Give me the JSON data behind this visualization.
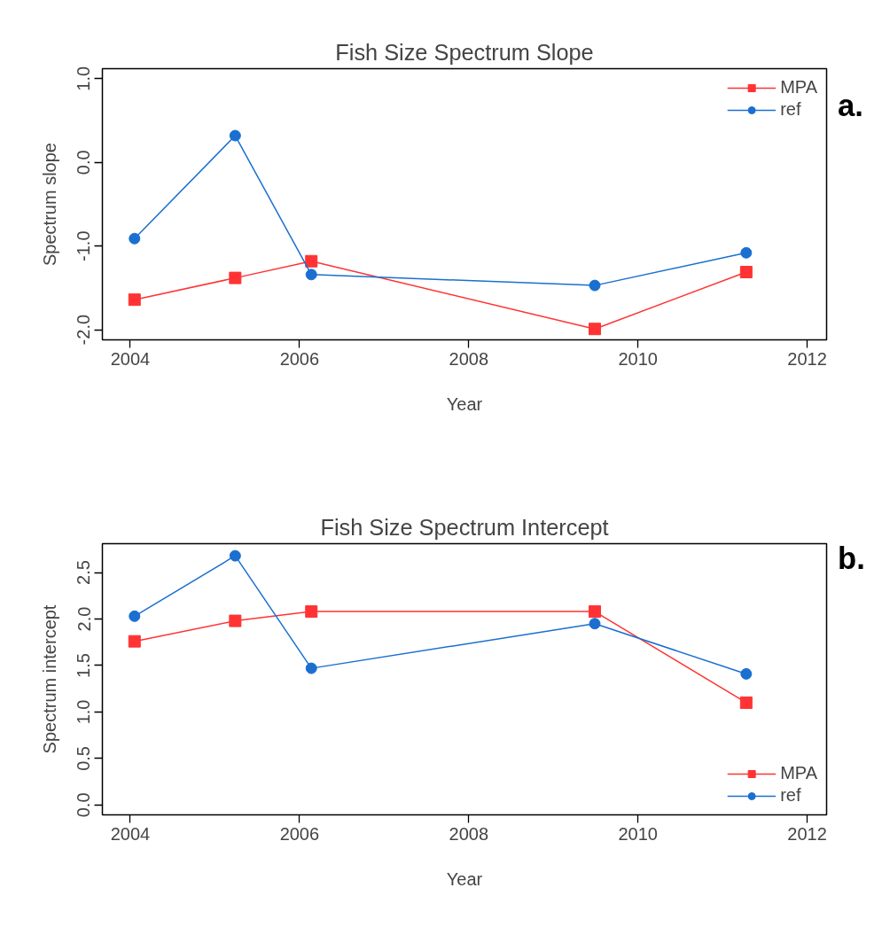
{
  "chart_data": [
    {
      "type": "line",
      "title": "Fish Size Spectrum Slope",
      "xlabel": "Year",
      "ylabel": "Spectrum slope",
      "annotations": [
        "a."
      ],
      "x": [
        2004.05,
        2005.24,
        2006.14,
        2009.49,
        2011.28
      ],
      "series": [
        {
          "name": "MPA",
          "color": "#ff3333",
          "marker": "square",
          "values": [
            -1.64,
            -1.38,
            -1.18,
            -1.99,
            -1.31
          ]
        },
        {
          "name": "ref",
          "color": "#1a6fd0",
          "marker": "circle",
          "values": [
            -0.91,
            0.32,
            -1.34,
            -1.47,
            -1.08
          ]
        }
      ],
      "xlim": [
        2003.67,
        2012.23
      ],
      "xticks": [
        2004,
        2006,
        2008,
        2010,
        2012
      ],
      "ylim": [
        -2.12,
        1.12
      ],
      "yticks": [
        {
          "value": -2,
          "label": "-2.0"
        },
        {
          "value": -1,
          "label": "-1.0"
        },
        {
          "value": 0,
          "label": "0.0"
        },
        {
          "value": 1,
          "label": "1.0"
        }
      ],
      "grid": false,
      "legend": "top right",
      "line_style": "solid"
    },
    {
      "type": "line",
      "title": "Fish Size Spectrum Intercept",
      "xlabel": "Year",
      "ylabel": "Spectrum intercept",
      "annotations": [
        "b."
      ],
      "x": [
        2004.05,
        2005.24,
        2006.14,
        2009.49,
        2011.28
      ],
      "series": [
        {
          "name": "MPA",
          "color": "#ff3333",
          "marker": "square",
          "values": [
            1.76,
            1.98,
            2.08,
            2.08,
            1.1
          ]
        },
        {
          "name": "ref",
          "color": "#1a6fd0",
          "marker": "circle",
          "values": [
            2.03,
            2.68,
            1.47,
            1.95,
            1.41
          ]
        }
      ],
      "xlim": [
        2003.67,
        2012.23
      ],
      "xticks": [
        2004,
        2006,
        2008,
        2010,
        2012
      ],
      "ylim": [
        -0.106,
        2.81
      ],
      "yticks": [
        {
          "value": 0,
          "label": "0.0"
        },
        {
          "value": 0.5,
          "label": "0.5"
        },
        {
          "value": 1,
          "label": "1.0"
        },
        {
          "value": 1.5,
          "label": "1.5"
        },
        {
          "value": 2,
          "label": "2.0"
        },
        {
          "value": 2.5,
          "label": "2.5"
        }
      ],
      "grid": false,
      "legend": "bottom right",
      "line_style": "solid"
    }
  ]
}
